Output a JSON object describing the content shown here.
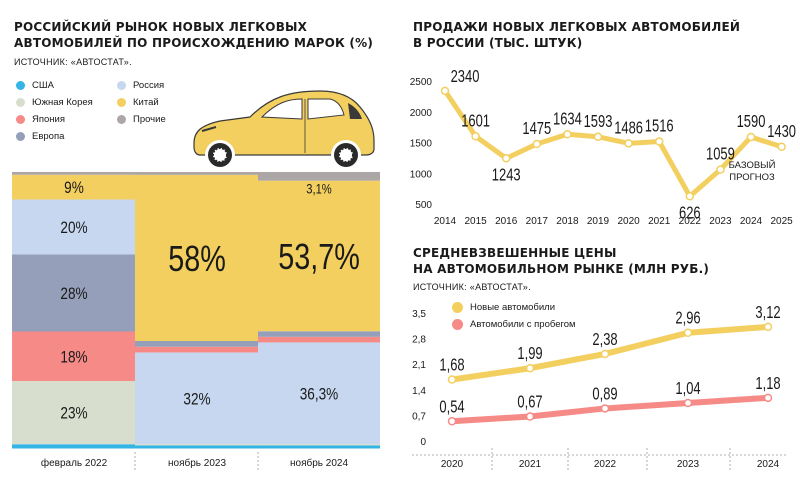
{
  "left": {
    "title_line1": "РОССИЙСКИЙ РЫНОК НОВЫХ ЛЕГКОВЫХ",
    "title_line2": "АВТОМОБИЛЕЙ ПО ПРОИСХОЖДЕНИЮ МАРОК (%)",
    "source": "ИСТОЧНИК: «АВТОСТАТ».",
    "legend": [
      {
        "label": "США",
        "color": "#33b5e5"
      },
      {
        "label": "Россия",
        "color": "#c6d7ef"
      },
      {
        "label": "Южная Корея",
        "color": "#d8dece"
      },
      {
        "label": "Китай",
        "color": "#f2cf5f"
      },
      {
        "label": "Япония",
        "color": "#f58a86"
      },
      {
        "label": "Прочие",
        "color": "#aca6a6"
      },
      {
        "label": "Европа",
        "color": "#959fba"
      }
    ]
  },
  "top_right": {
    "title_line1": "ПРОДАЖИ НОВЫХ ЛЕГКОВЫХ АВТОМОБИЛЕЙ",
    "title_line2": "В РОССИИ (ТЫС. ШТУК)",
    "annotation_line1": "БАЗОВЫЙ",
    "annotation_line2": "ПРОГНОЗ"
  },
  "bottom_right": {
    "title_line1": "СРЕДНЕВЗВЕШЕННЫЕ ЦЕНЫ",
    "title_line2": "НА АВТОМОБИЛЬНОМ РЫНКЕ (МЛН РУБ.)",
    "source": "ИСТОЧНИК: «АВТОСТАТ».",
    "legend": [
      {
        "label": "Новые автомобили",
        "color": "#f2cf5f"
      },
      {
        "label": "Автомобили с пробегом",
        "color": "#f58a86"
      }
    ]
  },
  "chart_data": [
    {
      "type": "bar",
      "stacked": true,
      "categories": [
        "февраль 2022",
        "ноябрь 2023",
        "ноябрь 2024"
      ],
      "series": [
        {
          "name": "США",
          "values": [
            1,
            0,
            0
          ],
          "color": "#33b5e5"
        },
        {
          "name": "Южная Корея",
          "values": [
            23,
            1,
            1
          ],
          "color": "#d8dece"
        },
        {
          "name": "Россия",
          "values": [
            0,
            32,
            36.3
          ],
          "color": "#c6d7ef"
        },
        {
          "name": "Япония",
          "values": [
            18,
            2,
            2
          ],
          "color": "#f58a86"
        },
        {
          "name": "Европа",
          "values": [
            28,
            2,
            2
          ],
          "color": "#959fba"
        },
        {
          "name": "Россия",
          "values": [
            20,
            0,
            0
          ],
          "color": "#c6d7ef"
        },
        {
          "name": "Китай",
          "values": [
            9,
            58,
            53.7
          ],
          "color": "#f2cf5f"
        },
        {
          "name": "Прочие",
          "values": [
            1,
            1,
            3.1
          ],
          "color": "#aca6a6"
        }
      ],
      "labels": [
        {
          "bar": 0,
          "series": 1,
          "text": "23%"
        },
        {
          "bar": 0,
          "series": 3,
          "text": "18%"
        },
        {
          "bar": 0,
          "series": 4,
          "text": "28%"
        },
        {
          "bar": 0,
          "series": 5,
          "text": "20%"
        },
        {
          "bar": 0,
          "series": 6,
          "text": "9%"
        },
        {
          "bar": 1,
          "series": 2,
          "text": "32%"
        },
        {
          "bar": 1,
          "series": 6,
          "text": "58%"
        },
        {
          "bar": 2,
          "series": 2,
          "text": "36,3%"
        },
        {
          "bar": 2,
          "series": 6,
          "text": "53,7%"
        },
        {
          "bar": 2,
          "series": 7,
          "text": "3,1%"
        }
      ],
      "ylim": [
        0,
        100
      ]
    },
    {
      "type": "line",
      "x": [
        "2014",
        "2015",
        "2016",
        "2017",
        "2018",
        "2019",
        "2020",
        "2021",
        "2022",
        "2023",
        "2024",
        "2025"
      ],
      "values": [
        2340,
        1601,
        1243,
        1475,
        1634,
        1593,
        1486,
        1516,
        626,
        1059,
        1590,
        1430
      ],
      "value_labels": [
        "2340",
        "1601",
        "1243",
        "1475",
        "1634",
        "1593",
        "1486",
        "1516",
        "626",
        "1059",
        "1590",
        "1430"
      ],
      "yticks": [
        500,
        1000,
        1500,
        2000,
        2500
      ],
      "ylim": [
        500,
        2500
      ],
      "color": "#f2cf5f"
    },
    {
      "type": "line",
      "x": [
        "2020",
        "2021",
        "2022",
        "2023",
        "2024"
      ],
      "series": [
        {
          "name": "Новые автомобили",
          "values": [
            1.68,
            1.99,
            2.38,
            2.96,
            3.12
          ],
          "labels": [
            "1,68",
            "1,99",
            "2,38",
            "2,96",
            "3,12"
          ],
          "color": "#f2cf5f"
        },
        {
          "name": "Автомобили с пробегом",
          "values": [
            0.54,
            0.67,
            0.89,
            1.04,
            1.18
          ],
          "labels": [
            "0,54",
            "0,67",
            "0,89",
            "1,04",
            "1,18"
          ],
          "color": "#f58a86"
        }
      ],
      "yticks": [
        "0",
        "0,7",
        "1,4",
        "2,1",
        "2,8",
        "3,5"
      ],
      "ylim": [
        0,
        3.5
      ]
    }
  ]
}
